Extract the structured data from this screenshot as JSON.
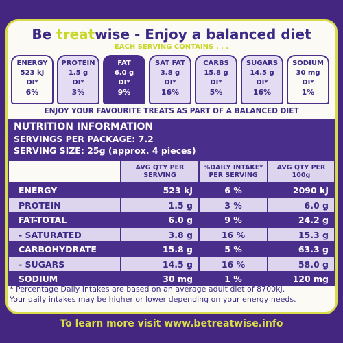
{
  "header": {
    "title_pre": "Be",
    "title_mid": "treat",
    "title_post": "wise - Enjoy a balanced diet",
    "subtitle": "EACH SERVING CONTAINS . . ."
  },
  "badges": [
    {
      "name": "ENERGY",
      "amount": "523 kJ",
      "di": "DI*",
      "percent": "6%"
    },
    {
      "name": "PROTEIN",
      "amount": "1.5 g",
      "di": "DI*",
      "percent": "3%"
    },
    {
      "name": "FAT",
      "amount": "6.0 g",
      "di": "DI*",
      "percent": "9%"
    },
    {
      "name": "SAT FAT",
      "amount": "3.8 g",
      "di": "DI*",
      "percent": "16%"
    },
    {
      "name": "CARBS",
      "amount": "15.8 g",
      "di": "DI*",
      "percent": "5%"
    },
    {
      "name": "SUGARS",
      "amount": "14.5 g",
      "di": "DI*",
      "percent": "16%"
    },
    {
      "name": "SODIUM",
      "amount": "30 mg",
      "di": "DI*",
      "percent": "1%"
    }
  ],
  "tagline": "ENJOY YOUR FAVOURITE TREATS AS PART OF A BALANCED DIET",
  "table": {
    "title": "NUTRITION INFORMATION",
    "servings": "SERVINGS PER PACKAGE: 7.2",
    "serving_size": "SERVING SIZE: 25g (approx. 4 pieces)",
    "columns": [
      "AVG QTY PER SERVING",
      "%DAILY INTAKE* PER SERVING",
      "AVG QTY PER 100g"
    ],
    "rows": [
      [
        "ENERGY",
        "523 kJ",
        "6 %",
        "2090 kJ"
      ],
      [
        "PROTEIN",
        "1.5 g",
        "3 %",
        "6.0 g"
      ],
      [
        "FAT-TOTAL",
        "6.0 g",
        "9 %",
        "24.2 g"
      ],
      [
        "- SATURATED",
        "3.8 g",
        "16 %",
        "15.3 g"
      ],
      [
        "CARBOHYDRATE",
        "15.8 g",
        "5 %",
        "63.3 g"
      ],
      [
        "- SUGARS",
        "14.5 g",
        "16 %",
        "58.0 g"
      ],
      [
        "SODIUM",
        "30 mg",
        "1 %",
        "120 mg"
      ]
    ]
  },
  "footnotes": [
    "* Percentage Daily Intakes are based on an average adult diet of 8700kJ.",
    "Your daily intakes may be higher or lower depending on your energy needs."
  ],
  "footer": "To learn more visit www.betreatwise.info"
}
